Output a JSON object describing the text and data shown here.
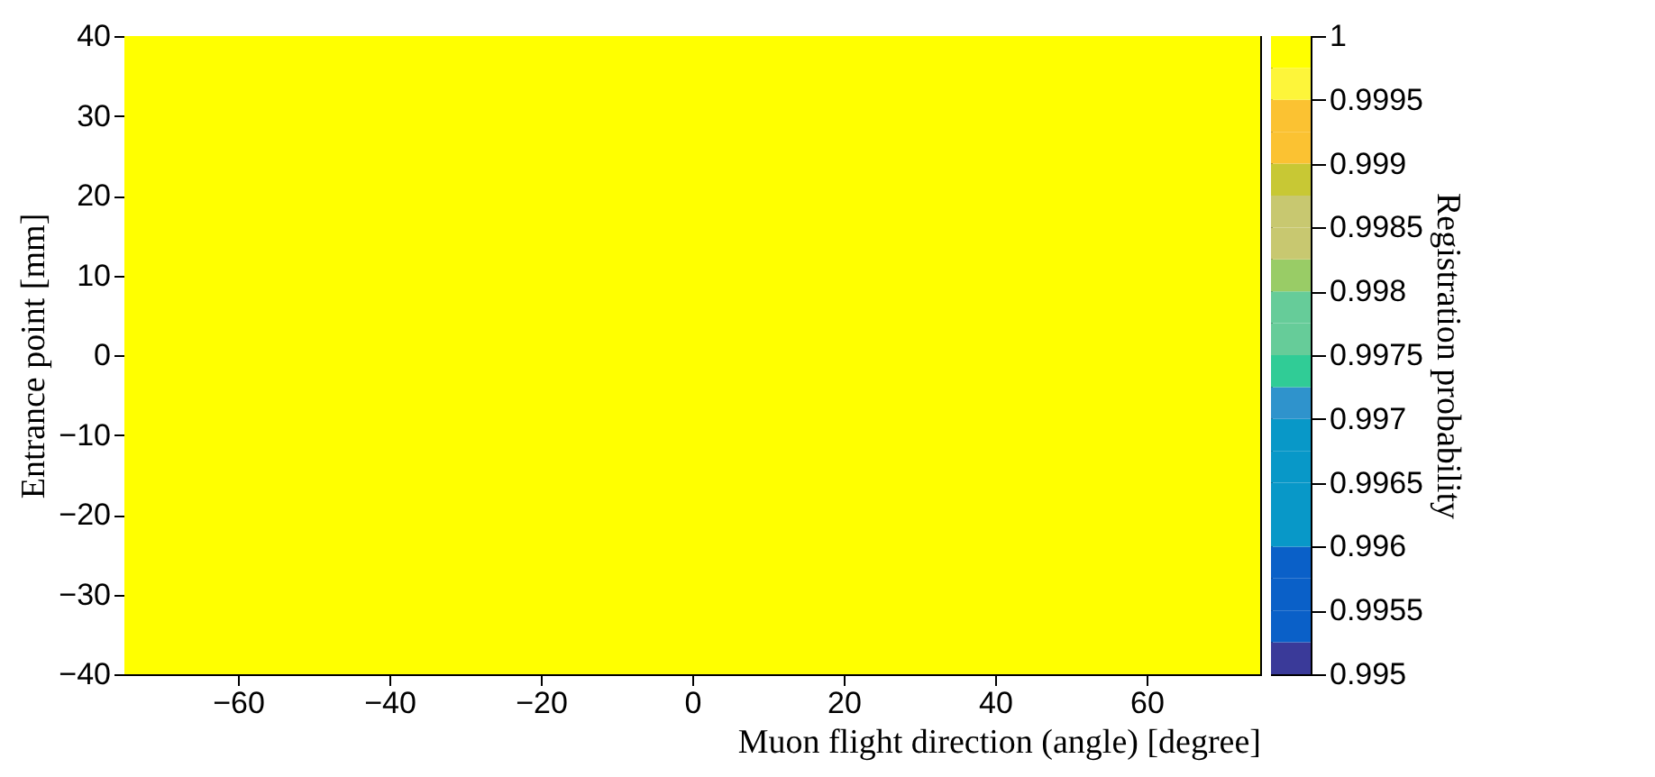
{
  "chart_data": {
    "type": "heatmap",
    "xlabel": "Muon flight direction (angle) [degree]",
    "ylabel": "Entrance point [mm]",
    "clabel": "Registration probability",
    "cells": [
      [
        1
      ]
    ],
    "xlim": [
      -75,
      75
    ],
    "xticks": [
      -60,
      -40,
      -20,
      0,
      20,
      40,
      60
    ],
    "ylim": [
      -40,
      40
    ],
    "yticks": [
      -40,
      -30,
      -20,
      -10,
      0,
      10,
      20,
      30,
      40
    ],
    "clim": [
      0.995,
      1
    ],
    "cticks": [
      0.995,
      0.9955,
      0.996,
      0.9965,
      0.997,
      0.9975,
      0.998,
      0.9985,
      0.999,
      0.9995,
      1
    ],
    "colors": [
      "#3a3a99",
      "#0a60c8",
      "#0a60c8",
      "#0a60c8",
      "#0898c8",
      "#0898c8",
      "#0898c8",
      "#0898c8",
      "#2f93cc",
      "#30cc96",
      "#66cc99",
      "#66cc99",
      "#99cc66",
      "#c8c870",
      "#c8c870",
      "#c8c834",
      "#fbc232",
      "#fbc232",
      "#fdf53a",
      "#ffff00"
    ]
  }
}
